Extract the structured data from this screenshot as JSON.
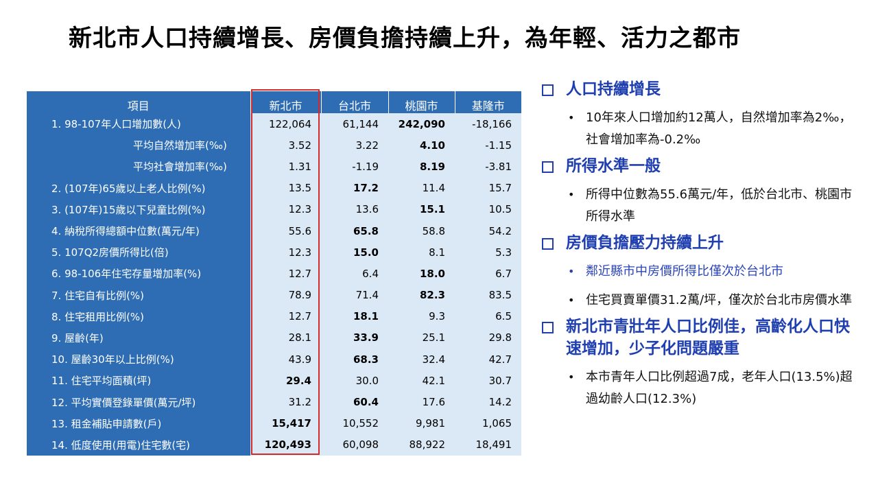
{
  "title": "新北市人口持續增長、房價負擔持續上升，為年輕、活力之都市",
  "table": {
    "headers": [
      "項目",
      "新北市",
      "台北市",
      "桃園市",
      "基隆市"
    ],
    "rows": [
      {
        "label": "1.  98-107年人口增加數(人)",
        "sub": false,
        "cells": [
          "122,064",
          "61,144",
          "242,090",
          "-18,166"
        ],
        "bold": [
          false,
          false,
          true,
          false
        ]
      },
      {
        "label": "平均自然增加率(‰)",
        "sub": true,
        "cells": [
          "3.52",
          "3.22",
          "4.10",
          "-1.15"
        ],
        "bold": [
          false,
          false,
          true,
          false
        ]
      },
      {
        "label": "平均社會增加率(‰)",
        "sub": true,
        "cells": [
          "1.31",
          "-1.19",
          "8.19",
          "-3.81"
        ],
        "bold": [
          false,
          false,
          true,
          false
        ]
      },
      {
        "label": "2.  (107年)65歲以上老人比例(%)",
        "sub": false,
        "cells": [
          "13.5",
          "17.2",
          "11.4",
          "15.7"
        ],
        "bold": [
          false,
          true,
          false,
          false
        ]
      },
      {
        "label": "3.  (107年)15歲以下兒童比例(%)",
        "sub": false,
        "cells": [
          "12.3",
          "13.6",
          "15.1",
          "10.5"
        ],
        "bold": [
          false,
          false,
          true,
          false
        ]
      },
      {
        "label": "4.  納稅所得總額中位數(萬元/年)",
        "sub": false,
        "cells": [
          "55.6",
          "65.8",
          "58.8",
          "54.2"
        ],
        "bold": [
          false,
          true,
          false,
          false
        ]
      },
      {
        "label": "5.  107Q2房價所得比(倍)",
        "sub": false,
        "cells": [
          "12.3",
          "15.0",
          "8.1",
          "5.3"
        ],
        "bold": [
          false,
          true,
          false,
          false
        ]
      },
      {
        "label": "6.  98-106年住宅存量增加率(%)",
        "sub": false,
        "cells": [
          "12.7",
          "6.4",
          "18.0",
          "6.7"
        ],
        "bold": [
          false,
          false,
          true,
          false
        ]
      },
      {
        "label": "7.  住宅自有比例(%)",
        "sub": false,
        "cells": [
          "78.9",
          "71.4",
          "82.3",
          "83.5"
        ],
        "bold": [
          false,
          false,
          true,
          false
        ]
      },
      {
        "label": "8.  住宅租用比例(%)",
        "sub": false,
        "cells": [
          "12.7",
          "18.1",
          "9.3",
          "6.5"
        ],
        "bold": [
          false,
          true,
          false,
          false
        ]
      },
      {
        "label": "9.  屋齡(年)",
        "sub": false,
        "cells": [
          "28.1",
          "33.9",
          "25.1",
          "29.8"
        ],
        "bold": [
          false,
          true,
          false,
          false
        ]
      },
      {
        "label": "10.  屋齡30年以上比例(%)",
        "sub": false,
        "cells": [
          "43.9",
          "68.3",
          "32.4",
          "42.7"
        ],
        "bold": [
          false,
          true,
          false,
          false
        ]
      },
      {
        "label": "11.  住宅平均面積(坪)",
        "sub": false,
        "cells": [
          "29.4",
          "30.0",
          "42.1",
          "30.7"
        ],
        "bold": [
          true,
          false,
          false,
          false
        ]
      },
      {
        "label": "12.  平均實價登錄單價(萬元/坪)",
        "sub": false,
        "cells": [
          "31.2",
          "60.4",
          "17.6",
          "14.2"
        ],
        "bold": [
          false,
          true,
          false,
          false
        ]
      },
      {
        "label": "13.  租金補貼申請數(戶)",
        "sub": false,
        "cells": [
          "15,417",
          "10,552",
          "9,981",
          "1,065"
        ],
        "bold": [
          true,
          false,
          false,
          false
        ]
      },
      {
        "label": "14.  低度使用(用電)住宅數(宅)",
        "sub": false,
        "cells": [
          "120,493",
          "60,098",
          "88,922",
          "18,491"
        ],
        "bold": [
          true,
          false,
          false,
          false
        ]
      }
    ]
  },
  "sections": [
    {
      "heading": "人口持續增長",
      "bullets": [
        {
          "text": "10年來人口增加約12萬人，自然增加率為2‰，社會增加率為-0.2‰",
          "blue": false
        }
      ]
    },
    {
      "heading": "所得水準一般",
      "bullets": [
        {
          "text": "所得中位數為55.6萬元/年，低於台北市、桃園市所得水準",
          "blue": false
        }
      ]
    },
    {
      "heading": "房價負擔壓力持續上升",
      "bullets": [
        {
          "text": "鄰近縣市中房價所得比僅次於台北市",
          "blue": true
        },
        {
          "text": "住宅買賣單價31.2萬/坪，僅次於台北市房價水準",
          "blue": false
        }
      ]
    },
    {
      "heading": "新北市青壯年人口比例佳，高齡化人口快速增加，少子化問題嚴重",
      "bullets": [
        {
          "text": "本市青年人口比例超過7成，老年人口(13.5%)超過幼齡人口(12.3%)",
          "blue": false
        }
      ]
    }
  ]
}
